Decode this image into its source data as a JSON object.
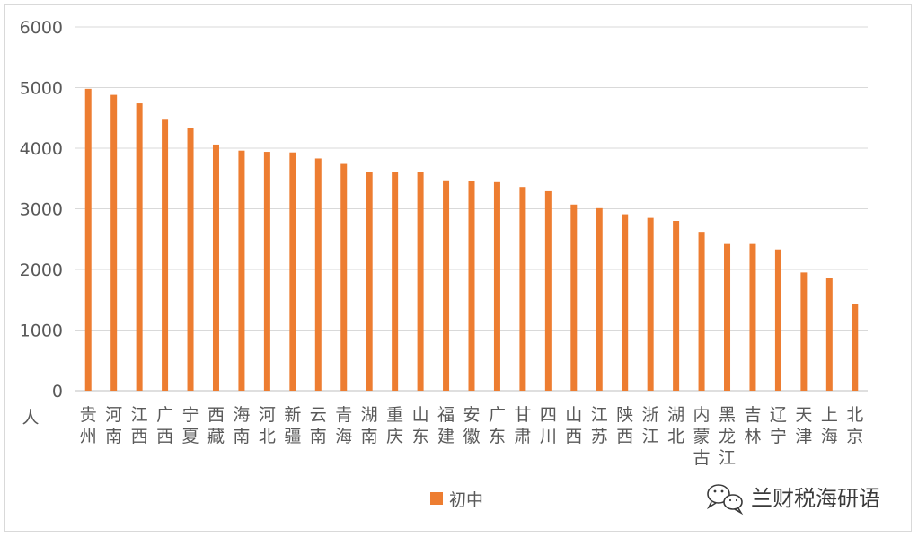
{
  "chart_data": {
    "type": "bar",
    "title": "",
    "xlabel": "",
    "ylabel": "人",
    "ylim": [
      0,
      6000
    ],
    "yticks": [
      0,
      1000,
      2000,
      3000,
      4000,
      5000,
      6000
    ],
    "grid": true,
    "legend_position": "bottom",
    "bar_color": "#ED7D31",
    "categories": [
      "贵州",
      "河南",
      "江西",
      "广西",
      "宁夏",
      "西藏",
      "海南",
      "河北",
      "新疆",
      "云南",
      "青海",
      "湖南",
      "重庆",
      "山东",
      "福建",
      "安徽",
      "广东",
      "甘肃",
      "四川",
      "山西",
      "江苏",
      "陕西",
      "浙江",
      "湖北",
      "内蒙古",
      "黑龙江",
      "吉林",
      "辽宁",
      "天津",
      "上海",
      "北京"
    ],
    "series": [
      {
        "name": "初中",
        "values": [
          4980,
          4880,
          4740,
          4470,
          4340,
          4060,
          3960,
          3940,
          3930,
          3830,
          3740,
          3610,
          3610,
          3600,
          3470,
          3460,
          3440,
          3360,
          3290,
          3070,
          3010,
          2910,
          2850,
          2800,
          2620,
          2420,
          2420,
          2330,
          1950,
          1860,
          1430
        ]
      }
    ]
  },
  "watermark": {
    "text": "兰财税海研语",
    "icon": "wechat-icon"
  }
}
